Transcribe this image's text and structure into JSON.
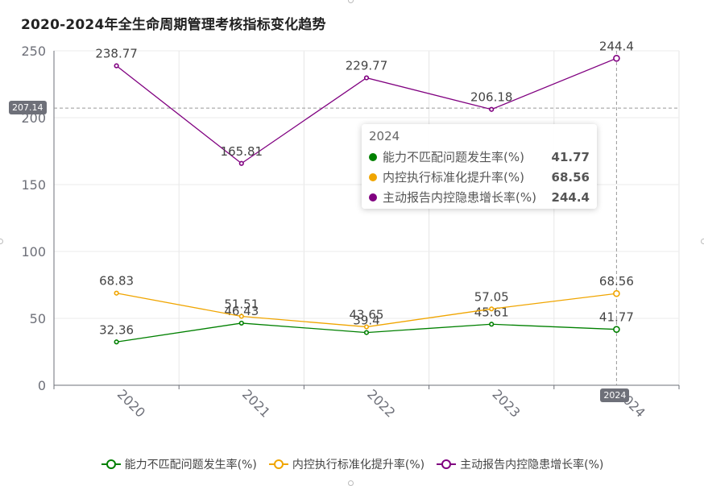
{
  "chart_data": {
    "type": "line",
    "title": "2020-2024年全生命周期管理考核指标变化趋势",
    "categories": [
      "2020",
      "2021",
      "2022",
      "2023",
      "2024"
    ],
    "ylim": [
      0,
      250
    ],
    "yticks": [
      "0",
      "50",
      "100",
      "150",
      "200",
      "250"
    ],
    "ytick_values": [
      0,
      50,
      100,
      150,
      200,
      250
    ],
    "series": [
      {
        "name": "能力不匹配问题发生率(%)",
        "color": "#008000",
        "values": [
          32.36,
          46.43,
          39.4,
          45.61,
          41.77
        ],
        "labels": [
          "32.36",
          "46.43",
          "39.4",
          "45.61",
          "41.77"
        ]
      },
      {
        "name": "内控执行标准化提升率(%)",
        "color": "#f0a500",
        "values": [
          68.83,
          51.51,
          43.65,
          57.05,
          68.56
        ],
        "labels": [
          "68.83",
          "51.51",
          "43.65",
          "57.05",
          "68.56"
        ]
      },
      {
        "name": "主动报告内控隐患增长率(%)",
        "color": "#800080",
        "values": [
          238.77,
          165.81,
          229.77,
          206.18,
          244.4
        ],
        "labels": [
          "238.77",
          "165.81",
          "229.77",
          "206.18",
          "244.4"
        ]
      }
    ],
    "grid": true,
    "legend": "bottom-center"
  },
  "tooltip": {
    "title": "2024",
    "rows": [
      {
        "name": "能力不匹配问题发生率(%)",
        "value": "41.77",
        "color": "#008000"
      },
      {
        "name": "内控执行标准化提升率(%)",
        "value": "68.56",
        "color": "#f0a500"
      },
      {
        "name": "主动报告内控隐患增长率(%)",
        "value": "244.4",
        "color": "#800080"
      }
    ]
  },
  "crosshair": {
    "y_label": "207.14",
    "y_value": 207.14,
    "x_label": "2024",
    "x_category": "2024"
  }
}
